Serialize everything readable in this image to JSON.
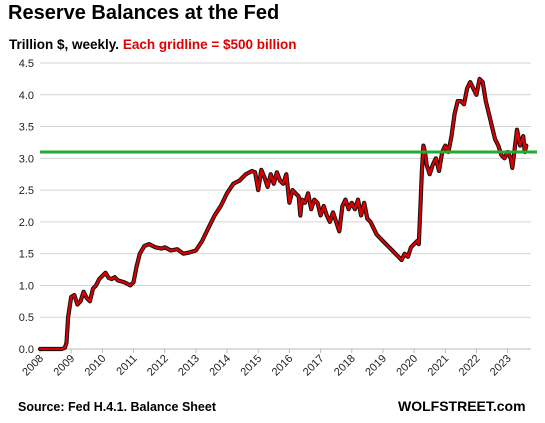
{
  "chart_data": {
    "type": "line",
    "title": "Reserve Balances at the Fed",
    "subtitle_black": "Trillion $, weekly.",
    "subtitle_red": "Each gridline = $500 billion",
    "y_ticks": [
      "0.0",
      "0.5",
      "1.0",
      "1.5",
      "2.0",
      "2.5",
      "3.0",
      "3.5",
      "4.0",
      "4.5"
    ],
    "x_ticks": [
      "2008",
      "2009",
      "2010",
      "2011",
      "2012",
      "2013",
      "2014",
      "2015",
      "2016",
      "2017",
      "2018",
      "2019",
      "2020",
      "2021",
      "2022",
      "2023"
    ],
    "ylim": [
      0,
      4.5
    ],
    "xlim": [
      2008,
      2023.75
    ],
    "grid": true,
    "reference_line": {
      "value": 3.1,
      "color": "#22aa33"
    },
    "series": [
      {
        "color": "#dd0000",
        "x": [
          2008.0,
          2008.5,
          2008.7,
          2008.8,
          2008.85,
          2008.9,
          2009.0,
          2009.1,
          2009.2,
          2009.3,
          2009.4,
          2009.5,
          2009.6,
          2009.7,
          2009.8,
          2009.9,
          2010.0,
          2010.1,
          2010.2,
          2010.3,
          2010.4,
          2010.5,
          2010.7,
          2010.9,
          2011.0,
          2011.1,
          2011.2,
          2011.35,
          2011.5,
          2011.7,
          2011.9,
          2012.0,
          2012.2,
          2012.4,
          2012.6,
          2012.8,
          2013.0,
          2013.2,
          2013.4,
          2013.6,
          2013.8,
          2014.0,
          2014.2,
          2014.4,
          2014.6,
          2014.8,
          2014.9,
          2015.0,
          2015.1,
          2015.2,
          2015.3,
          2015.4,
          2015.5,
          2015.6,
          2015.7,
          2015.8,
          2015.9,
          2016.0,
          2016.1,
          2016.2,
          2016.3,
          2016.35,
          2016.4,
          2016.5,
          2016.6,
          2016.7,
          2016.8,
          2016.9,
          2017.0,
          2017.1,
          2017.2,
          2017.3,
          2017.4,
          2017.5,
          2017.6,
          2017.7,
          2017.8,
          2017.9,
          2018.0,
          2018.1,
          2018.2,
          2018.3,
          2018.4,
          2018.5,
          2018.6,
          2018.7,
          2018.8,
          2018.9,
          2019.0,
          2019.1,
          2019.2,
          2019.3,
          2019.4,
          2019.5,
          2019.6,
          2019.7,
          2019.8,
          2019.9,
          2020.0,
          2020.1,
          2020.15,
          2020.2,
          2020.25,
          2020.3,
          2020.35,
          2020.4,
          2020.5,
          2020.6,
          2020.7,
          2020.8,
          2020.9,
          2021.0,
          2021.1,
          2021.2,
          2021.3,
          2021.4,
          2021.5,
          2021.6,
          2021.7,
          2021.8,
          2021.9,
          2022.0,
          2022.1,
          2022.2,
          2022.3,
          2022.4,
          2022.5,
          2022.6,
          2022.7,
          2022.8,
          2022.9,
          2023.0,
          2023.1,
          2023.15,
          2023.2,
          2023.3,
          2023.4,
          2023.5,
          2023.55,
          2023.6
        ],
        "y": [
          0.0,
          0.0,
          0.0,
          0.02,
          0.1,
          0.5,
          0.82,
          0.85,
          0.7,
          0.75,
          0.9,
          0.8,
          0.75,
          0.95,
          1.0,
          1.1,
          1.15,
          1.2,
          1.12,
          1.1,
          1.13,
          1.08,
          1.05,
          1.0,
          1.05,
          1.3,
          1.5,
          1.62,
          1.65,
          1.6,
          1.58,
          1.6,
          1.55,
          1.57,
          1.5,
          1.52,
          1.55,
          1.7,
          1.9,
          2.1,
          2.25,
          2.45,
          2.6,
          2.65,
          2.75,
          2.8,
          2.78,
          2.5,
          2.82,
          2.7,
          2.55,
          2.75,
          2.6,
          2.78,
          2.65,
          2.6,
          2.75,
          2.3,
          2.5,
          2.45,
          2.4,
          2.1,
          2.35,
          2.3,
          2.45,
          2.2,
          2.35,
          2.3,
          2.1,
          2.25,
          2.1,
          2.0,
          2.15,
          2.0,
          1.85,
          2.25,
          2.35,
          2.2,
          2.3,
          2.2,
          2.35,
          2.1,
          2.3,
          2.05,
          2.0,
          1.9,
          1.8,
          1.75,
          1.7,
          1.65,
          1.6,
          1.55,
          1.5,
          1.45,
          1.4,
          1.5,
          1.45,
          1.6,
          1.65,
          1.7,
          1.65,
          2.2,
          2.8,
          3.2,
          3.1,
          2.9,
          2.75,
          2.9,
          3.0,
          2.8,
          3.1,
          3.2,
          3.1,
          3.35,
          3.7,
          3.9,
          3.9,
          3.85,
          4.1,
          4.2,
          4.1,
          4.0,
          4.25,
          4.2,
          3.9,
          3.7,
          3.5,
          3.3,
          3.2,
          3.05,
          3.0,
          3.1,
          3.0,
          2.85,
          3.05,
          3.45,
          3.2,
          3.35,
          3.1,
          3.2
        ]
      }
    ]
  },
  "footer": {
    "source": "Source: Fed H.4.1. Balance Sheet",
    "brand": "WOLFSTREET.com"
  }
}
